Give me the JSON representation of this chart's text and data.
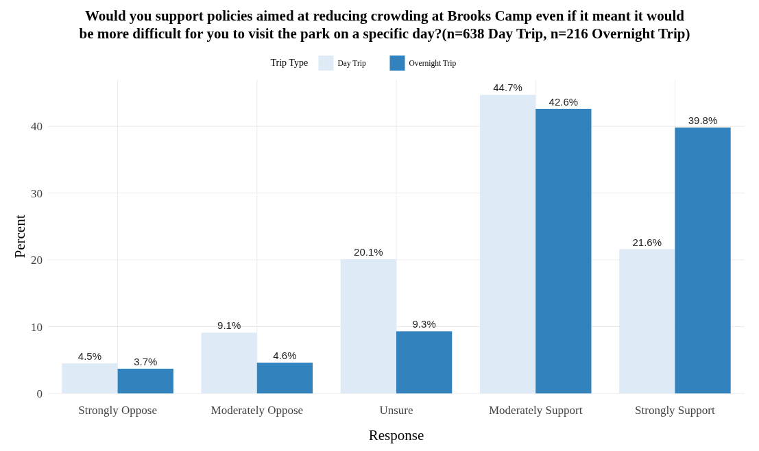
{
  "chart_data": {
    "type": "bar",
    "title": "Would you support policies aimed at reducing crowding at Brooks Camp even if it meant it would\nbe more difficult for you to visit the park on a specific day?(n=638 Day Trip, n=216 Overnight Trip)",
    "xlabel": "Response",
    "ylabel": "Percent",
    "legend_title": "Trip Type",
    "legend": "top",
    "grid": true,
    "categories": [
      "Strongly Oppose",
      "Moderately Oppose",
      "Unsure",
      "Moderately Support",
      "Strongly Support"
    ],
    "series": [
      {
        "name": "Day Trip",
        "color": "#deebf7",
        "values": [
          4.5,
          9.1,
          20.1,
          44.7,
          21.6
        ],
        "value_labels": [
          "4.5%",
          "9.1%",
          "20.1%",
          "44.7%",
          "21.6%"
        ]
      },
      {
        "name": "Overnight Trip",
        "color": "#3182bd",
        "values": [
          3.7,
          4.6,
          9.3,
          42.6,
          39.8
        ],
        "value_labels": [
          "3.7%",
          "4.6%",
          "9.3%",
          "42.6%",
          "39.8%"
        ]
      }
    ],
    "ylim": [
      0,
      47
    ],
    "yticks": [
      0,
      10,
      20,
      30,
      40
    ]
  }
}
